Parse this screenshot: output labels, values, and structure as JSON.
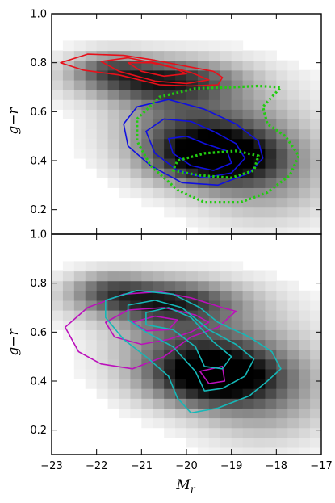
{
  "chart_data": [
    {
      "type": "heatmap",
      "panel": "top",
      "xlabel": "",
      "ylabel": "g−r",
      "xlim": [
        -23,
        -17
      ],
      "ylim": [
        0.1,
        1.0
      ],
      "yticks": [
        "0.2",
        "0.4",
        "0.6",
        "0.8",
        "1.0"
      ],
      "xticks": [
        -23,
        -22,
        -21,
        -20,
        -19,
        -18,
        -17
      ],
      "grid": false,
      "background": "2D density of galaxies in (M_r, g−r), greyscale",
      "contours": [
        {
          "color": "#e8101a",
          "style": "solid",
          "levels": [
            [
              [
                -22.8,
                0.8
              ],
              [
                -22.2,
                0.835
              ],
              [
                -21.4,
                0.83
              ],
              [
                -20.7,
                0.81
              ],
              [
                -20.0,
                0.785
              ],
              [
                -19.4,
                0.765
              ],
              [
                -19.2,
                0.74
              ],
              [
                -19.3,
                0.71
              ],
              [
                -19.9,
                0.705
              ],
              [
                -20.6,
                0.71
              ],
              [
                -21.5,
                0.75
              ],
              [
                -22.3,
                0.77
              ],
              [
                -22.8,
                0.8
              ]
            ],
            [
              [
                -21.9,
                0.805
              ],
              [
                -21.3,
                0.82
              ],
              [
                -20.6,
                0.795
              ],
              [
                -19.9,
                0.76
              ],
              [
                -19.5,
                0.73
              ],
              [
                -20.0,
                0.715
              ],
              [
                -20.7,
                0.725
              ],
              [
                -21.5,
                0.765
              ],
              [
                -21.9,
                0.805
              ]
            ],
            [
              [
                -21.3,
                0.8
              ],
              [
                -20.8,
                0.8
              ],
              [
                -20.3,
                0.78
              ],
              [
                -20.0,
                0.755
              ],
              [
                -20.5,
                0.745
              ],
              [
                -21.0,
                0.765
              ],
              [
                -21.3,
                0.8
              ]
            ]
          ]
        },
        {
          "color": "#1010e0",
          "style": "solid",
          "levels": [
            [
              [
                -21.4,
                0.55
              ],
              [
                -21.1,
                0.62
              ],
              [
                -20.4,
                0.65
              ],
              [
                -19.6,
                0.61
              ],
              [
                -18.9,
                0.55
              ],
              [
                -18.4,
                0.48
              ],
              [
                -18.3,
                0.41
              ],
              [
                -18.6,
                0.35
              ],
              [
                -19.3,
                0.3
              ],
              [
                -20.1,
                0.31
              ],
              [
                -20.8,
                0.38
              ],
              [
                -21.3,
                0.46
              ],
              [
                -21.4,
                0.55
              ]
            ],
            [
              [
                -20.9,
                0.52
              ],
              [
                -20.5,
                0.57
              ],
              [
                -19.9,
                0.56
              ],
              [
                -19.4,
                0.52
              ],
              [
                -18.9,
                0.47
              ],
              [
                -18.7,
                0.41
              ],
              [
                -19.0,
                0.35
              ],
              [
                -19.6,
                0.33
              ],
              [
                -20.2,
                0.36
              ],
              [
                -20.7,
                0.43
              ],
              [
                -20.9,
                0.52
              ]
            ],
            [
              [
                -20.4,
                0.49
              ],
              [
                -20.0,
                0.5
              ],
              [
                -19.6,
                0.47
              ],
              [
                -19.1,
                0.44
              ],
              [
                -19.0,
                0.39
              ],
              [
                -19.4,
                0.36
              ],
              [
                -19.9,
                0.38
              ],
              [
                -20.3,
                0.43
              ],
              [
                -20.4,
                0.49
              ]
            ]
          ]
        },
        {
          "color": "#22cc10",
          "style": "dotted",
          "levels": [
            [
              [
                -21.1,
                0.57
              ],
              [
                -20.6,
                0.66
              ],
              [
                -19.8,
                0.695
              ],
              [
                -19.0,
                0.7
              ],
              [
                -18.4,
                0.705
              ],
              [
                -17.9,
                0.7
              ],
              [
                -18.3,
                0.62
              ],
              [
                -18.2,
                0.55
              ],
              [
                -17.8,
                0.5
              ],
              [
                -17.5,
                0.42
              ],
              [
                -17.7,
                0.34
              ],
              [
                -18.2,
                0.27
              ],
              [
                -18.8,
                0.23
              ],
              [
                -19.6,
                0.23
              ],
              [
                -20.2,
                0.28
              ],
              [
                -20.8,
                0.38
              ],
              [
                -21.1,
                0.48
              ],
              [
                -21.1,
                0.57
              ]
            ],
            [
              [
                -20.3,
                0.36
              ],
              [
                -19.7,
                0.34
              ],
              [
                -19.0,
                0.33
              ],
              [
                -18.5,
                0.36
              ],
              [
                -18.4,
                0.42
              ],
              [
                -18.9,
                0.44
              ],
              [
                -19.6,
                0.43
              ],
              [
                -20.2,
                0.4
              ],
              [
                -20.3,
                0.36
              ]
            ]
          ]
        }
      ]
    },
    {
      "type": "heatmap",
      "panel": "bottom",
      "xlabel": "M_r",
      "ylabel": "g−r",
      "xlim": [
        -23,
        -17
      ],
      "ylim": [
        0.1,
        1.0
      ],
      "yticks": [
        "0.2",
        "0.4",
        "0.6",
        "0.8",
        "1.0"
      ],
      "xticks": [
        "−23",
        "−22",
        "−21",
        "−20",
        "−19",
        "−18",
        "−17"
      ],
      "grid": false,
      "background": "2D density of galaxies in (M_r, g−r), greyscale",
      "contours": [
        {
          "color": "#bb10bb",
          "style": "solid",
          "levels": [
            [
              [
                -22.7,
                0.62
              ],
              [
                -22.2,
                0.7
              ],
              [
                -21.4,
                0.755
              ],
              [
                -20.6,
                0.765
              ],
              [
                -19.9,
                0.74
              ],
              [
                -19.2,
                0.7
              ],
              [
                -18.9,
                0.685
              ],
              [
                -19.3,
                0.62
              ],
              [
                -19.9,
                0.58
              ],
              [
                -20.5,
                0.5
              ],
              [
                -21.2,
                0.45
              ],
              [
                -21.9,
                0.47
              ],
              [
                -22.4,
                0.52
              ],
              [
                -22.7,
                0.62
              ]
            ],
            [
              [
                -21.8,
                0.64
              ],
              [
                -21.3,
                0.69
              ],
              [
                -20.5,
                0.7
              ],
              [
                -19.8,
                0.67
              ],
              [
                -19.5,
                0.64
              ],
              [
                -19.9,
                0.6
              ],
              [
                -20.4,
                0.57
              ],
              [
                -21.0,
                0.55
              ],
              [
                -21.6,
                0.58
              ],
              [
                -21.8,
                0.64
              ]
            ],
            [
              [
                -21.2,
                0.64
              ],
              [
                -20.7,
                0.665
              ],
              [
                -20.2,
                0.65
              ],
              [
                -20.4,
                0.61
              ],
              [
                -20.9,
                0.605
              ],
              [
                -21.2,
                0.64
              ]
            ],
            [
              [
                -19.7,
                0.44
              ],
              [
                -19.2,
                0.46
              ],
              [
                -19.15,
                0.4
              ],
              [
                -19.5,
                0.39
              ],
              [
                -19.7,
                0.44
              ]
            ]
          ]
        },
        {
          "color": "#15b8b8",
          "style": "solid",
          "levels": [
            [
              [
                -21.8,
                0.73
              ],
              [
                -21.1,
                0.77
              ],
              [
                -20.3,
                0.755
              ],
              [
                -19.7,
                0.7
              ],
              [
                -19.3,
                0.64
              ],
              [
                -18.6,
                0.58
              ],
              [
                -18.1,
                0.52
              ],
              [
                -17.9,
                0.45
              ],
              [
                -18.2,
                0.4
              ],
              [
                -18.6,
                0.34
              ],
              [
                -19.3,
                0.29
              ],
              [
                -19.9,
                0.27
              ],
              [
                -20.2,
                0.33
              ],
              [
                -20.4,
                0.42
              ],
              [
                -20.9,
                0.5
              ],
              [
                -21.4,
                0.57
              ],
              [
                -21.8,
                0.66
              ],
              [
                -21.8,
                0.73
              ]
            ],
            [
              [
                -21.3,
                0.71
              ],
              [
                -20.7,
                0.73
              ],
              [
                -20.1,
                0.7
              ],
              [
                -19.5,
                0.61
              ],
              [
                -18.9,
                0.55
              ],
              [
                -18.5,
                0.49
              ],
              [
                -18.7,
                0.42
              ],
              [
                -19.2,
                0.37
              ],
              [
                -19.6,
                0.36
              ],
              [
                -19.8,
                0.44
              ],
              [
                -20.3,
                0.54
              ],
              [
                -20.9,
                0.6
              ],
              [
                -21.3,
                0.65
              ],
              [
                -21.3,
                0.71
              ]
            ],
            [
              [
                -20.9,
                0.68
              ],
              [
                -20.4,
                0.7
              ],
              [
                -19.9,
                0.66
              ],
              [
                -19.4,
                0.56
              ],
              [
                -19.0,
                0.5
              ],
              [
                -19.2,
                0.45
              ],
              [
                -19.6,
                0.46
              ],
              [
                -19.8,
                0.54
              ],
              [
                -20.3,
                0.61
              ],
              [
                -20.9,
                0.63
              ],
              [
                -20.9,
                0.68
              ]
            ]
          ]
        }
      ]
    }
  ]
}
